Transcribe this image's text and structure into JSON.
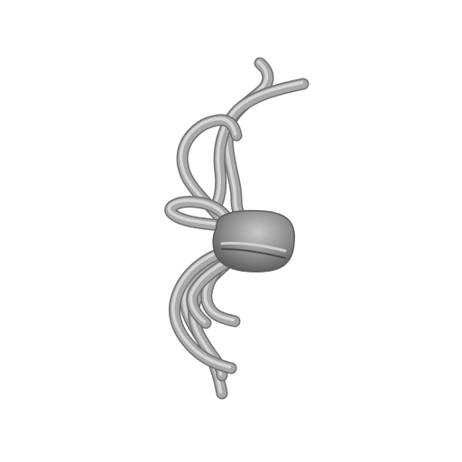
{
  "scene": {
    "subject": "gray-3d-render",
    "background_color": "#ffffff",
    "colors": {
      "shadow": "#6f6f6f",
      "base": "#a9a9a9",
      "highlight": "#d6d6d6",
      "body_dark": "#555555"
    }
  }
}
